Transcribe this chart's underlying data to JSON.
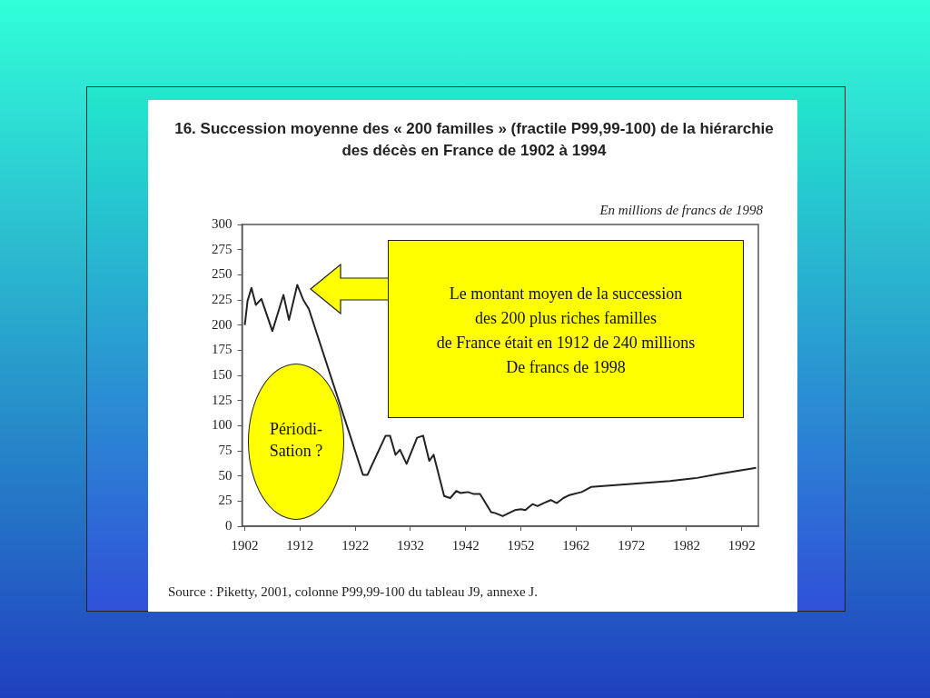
{
  "chart_data": {
    "type": "line",
    "title": "16. Succession moyenne des « 200 familles » (fractile P99,99-100) de la hiérarchie des décès en France de 1902 à 1994",
    "subtitle": "En millions de francs de 1998",
    "xlim": [
      1901.5,
      1995
    ],
    "xticks": [
      1902,
      1912,
      1922,
      1932,
      1942,
      1952,
      1962,
      1972,
      1982,
      1992
    ],
    "ylim": [
      0,
      300
    ],
    "yticks": [
      0,
      25,
      50,
      75,
      100,
      125,
      150,
      175,
      200,
      225,
      250,
      275,
      300
    ],
    "marker": "none",
    "line_style": "solid",
    "series": [
      {
        "color": "#222222",
        "x": [
          1902,
          1902.5,
          1903.2,
          1904,
          1905,
          1907,
          1909,
          1910,
          1911.5,
          1912.6,
          1913.6,
          1923.4,
          1924.2,
          1927.5,
          1928.3,
          1929.3,
          1930.1,
          1931.3,
          1933.2,
          1934.3,
          1935.4,
          1936.2,
          1938.1,
          1939.2,
          1940.3,
          1941.1,
          1942.4,
          1943.5,
          1944.6,
          1946.6,
          1947.4,
          1948.7,
          1949.8,
          1950.9,
          1952,
          1952.8,
          1954.1,
          1955,
          1956.1,
          1957.4,
          1958.5,
          1959.7,
          1960.8,
          1963,
          1964.7,
          1971.9,
          1979,
          1983.9,
          1987.8,
          1994.6
        ],
        "values": [
          200,
          224,
          237,
          220,
          226,
          194,
          230,
          205,
          240,
          225,
          216,
          51,
          51,
          90,
          90,
          71,
          76,
          62,
          88,
          90,
          65,
          71,
          30,
          28,
          35,
          33,
          34,
          32,
          32,
          14,
          13,
          10,
          13,
          16,
          17,
          16,
          22,
          20,
          23,
          26,
          23,
          28,
          31,
          34,
          39,
          42,
          45,
          48,
          52,
          58
        ]
      }
    ],
    "annotations": [
      "Le montant moyen de la succession\ndes 200 plus riches familles\nde France était en 1912 de 240 millions\nDe francs de 1998",
      "Périodi-\nSation ?",
      "Source : Piketty, 2001, colonne P99,99-100 du tableau J9, annexe J."
    ]
  }
}
